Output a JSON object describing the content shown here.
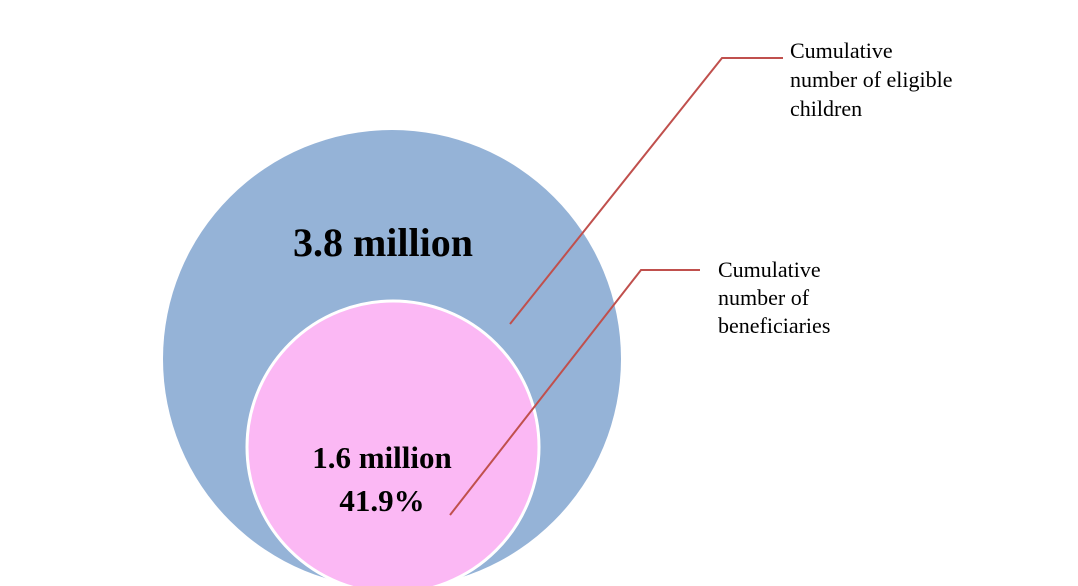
{
  "circles": [
    {
      "label": "3.8 million"
    },
    {
      "label": "1.6 million",
      "percent": "41.9%"
    }
  ],
  "callouts": [
    {
      "lines": [
        "Cumulative",
        "number of eligible",
        "children"
      ]
    },
    {
      "lines": [
        "Cumulative",
        "number of",
        "beneficiaries"
      ]
    }
  ]
}
